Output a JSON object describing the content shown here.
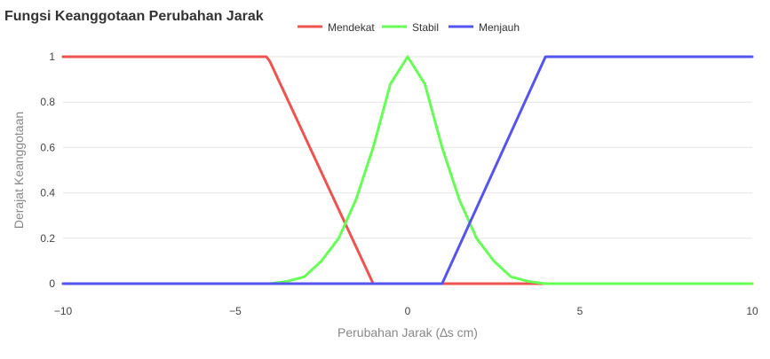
{
  "chart_data": {
    "type": "line",
    "title": "Fungsi Keanggotaan Perubahan Jarak",
    "xlabel": "Perubahan Jarak (∆s cm)",
    "ylabel": "Derajat Keanggotaan",
    "xlim": [
      -10,
      10
    ],
    "ylim": [
      0,
      1
    ],
    "xticks": [
      -10,
      -5,
      0,
      5,
      10
    ],
    "xtick_labels": [
      "−10",
      "−5",
      "0",
      "5",
      "10"
    ],
    "yticks": [
      0,
      0.2,
      0.4,
      0.6,
      0.8,
      1
    ],
    "ytick_labels": [
      "0",
      "0.2",
      "0.4",
      "0.6",
      "0.8",
      "1"
    ],
    "grid": "horizontal",
    "legend_position": "top",
    "series": [
      {
        "name": "Mendekat",
        "color": "#ef5350",
        "x": [
          -10,
          -4.1,
          -4,
          -1,
          10
        ],
        "y": [
          1,
          1,
          0.98,
          0,
          0
        ]
      },
      {
        "name": "Stabil",
        "color": "#66ff55",
        "x": [
          -10,
          -4,
          -3.5,
          -3,
          -2.5,
          -2,
          -1.5,
          -1,
          -0.5,
          0,
          0.5,
          1,
          1.5,
          2,
          2.5,
          3,
          3.5,
          4,
          10
        ],
        "y": [
          0,
          0,
          0.01,
          0.03,
          0.1,
          0.2,
          0.37,
          0.6,
          0.88,
          1,
          0.88,
          0.6,
          0.37,
          0.2,
          0.1,
          0.03,
          0.01,
          0,
          0
        ]
      },
      {
        "name": "Menjauh",
        "color": "#5555ee",
        "x": [
          -10,
          1,
          4,
          10
        ],
        "y": [
          0,
          0,
          1,
          1
        ]
      }
    ]
  }
}
